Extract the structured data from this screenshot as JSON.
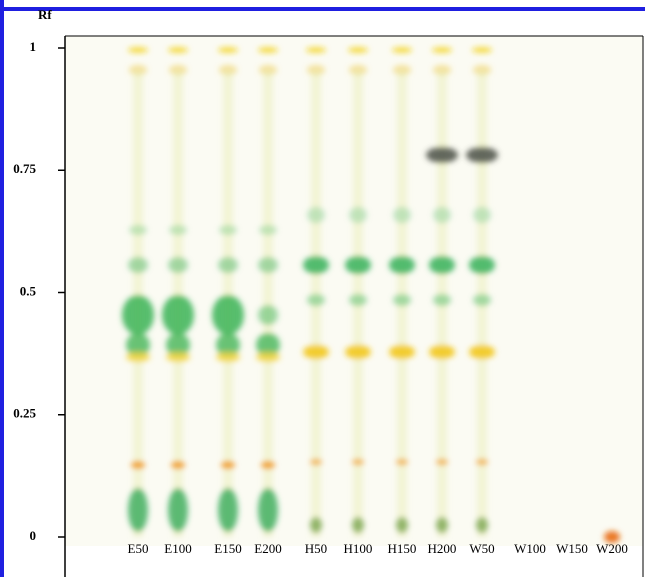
{
  "chart_data": {
    "type": "tlc",
    "y_label": "Rf",
    "categories": [
      "E50",
      "E100",
      "E150",
      "E200",
      "H50",
      "H100",
      "H150",
      "H200",
      "W50",
      "W100",
      "W150",
      "W200"
    ],
    "ylim": [
      0,
      1
    ],
    "yticks": [
      0,
      0.25,
      0.5,
      0.75,
      1
    ]
  }
}
